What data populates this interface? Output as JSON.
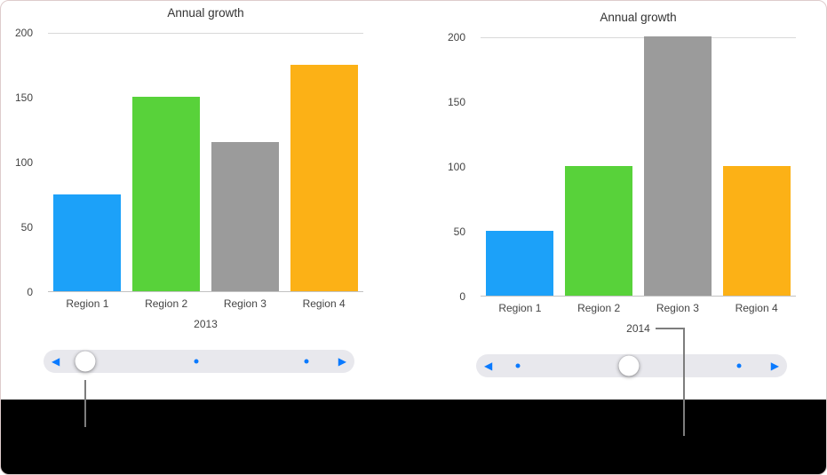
{
  "figure": {
    "kind": "interactive-chart-documentation-figure"
  },
  "theme": {
    "frame_border": "#decccc",
    "background": "#ffffff",
    "footer_bg": "#000000",
    "accent_blue": "#0a7aff",
    "slider_track": "#e8e8ed",
    "knob_color": "#ffffff",
    "grid_line": "#d9d9d9",
    "baseline": "#c2c2c2",
    "axis_text": "#444444",
    "title_text": "#333333",
    "callout_line": "#7d7d7d"
  },
  "icons": {
    "slider_prev": "◀",
    "slider_next": "▶"
  },
  "chart_data": [
    {
      "type": "bar",
      "title": "Annual growth",
      "categories": [
        "Region 1",
        "Region 2",
        "Region 3",
        "Region 4"
      ],
      "values": [
        75,
        150,
        115,
        175
      ],
      "bar_colors": [
        "#1ca1f9",
        "#58d23a",
        "#9b9b9b",
        "#fcb116"
      ],
      "xlabel": "2013",
      "ylabel": "",
      "ylim": [
        0,
        200
      ],
      "y_ticks": [
        0,
        50,
        100,
        150,
        200
      ],
      "grid": "top-and-baseline",
      "legend": false
    },
    {
      "type": "bar",
      "title": "Annual growth",
      "categories": [
        "Region 1",
        "Region 2",
        "Region 3",
        "Region 4"
      ],
      "values": [
        50,
        100,
        200,
        100
      ],
      "bar_colors": [
        "#1ca1f9",
        "#58d23a",
        "#9b9b9b",
        "#fcb116"
      ],
      "xlabel": "2014",
      "ylabel": "",
      "ylim": [
        0,
        200
      ],
      "y_ticks": [
        0,
        50,
        100,
        150,
        200
      ],
      "grid": "top-and-baseline",
      "legend": false
    }
  ],
  "sliders": [
    {
      "stops_percent": [
        13.5,
        49,
        84.5
      ],
      "active_index": 0
    },
    {
      "stops_percent": [
        13.5,
        49,
        84.5
      ],
      "active_index": 1
    }
  ]
}
